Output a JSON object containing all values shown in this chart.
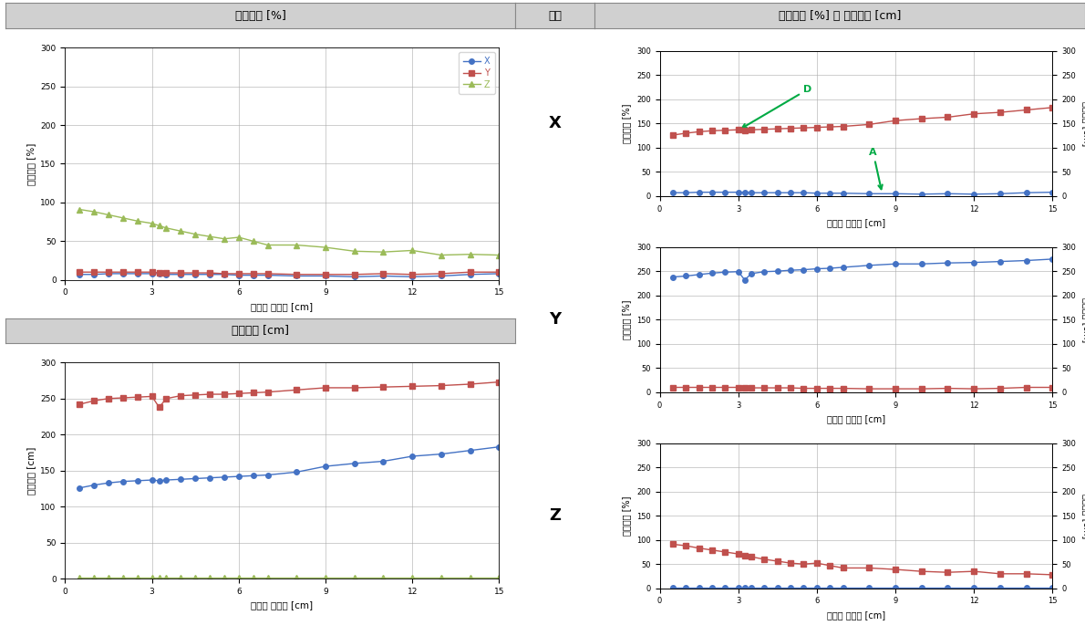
{
  "x_vals": [
    0.5,
    1.0,
    1.5,
    2.0,
    2.5,
    3.0,
    3.25,
    3.5,
    4.0,
    4.5,
    5.0,
    5.5,
    6.0,
    6.5,
    7.0,
    8.0,
    9.0,
    10.0,
    11.0,
    12.0,
    13.0,
    14.0,
    15.0
  ],
  "acc_X": [
    7,
    7,
    8,
    8,
    8,
    8,
    8,
    7,
    7,
    7,
    7,
    7,
    6,
    6,
    6,
    5,
    5,
    4,
    5,
    4,
    5,
    7,
    8
  ],
  "acc_Y": [
    10,
    10,
    10,
    10,
    10,
    10,
    9,
    9,
    9,
    9,
    9,
    8,
    8,
    8,
    8,
    7,
    7,
    7,
    8,
    7,
    8,
    10,
    10
  ],
  "acc_Z": [
    91,
    88,
    84,
    80,
    76,
    73,
    70,
    67,
    63,
    59,
    56,
    53,
    55,
    50,
    45,
    45,
    42,
    37,
    36,
    38,
    32,
    33,
    32
  ],
  "disp_X": [
    126,
    130,
    133,
    135,
    136,
    137,
    136,
    137,
    138,
    139,
    140,
    141,
    142,
    143,
    144,
    148,
    156,
    160,
    163,
    170,
    173,
    178,
    183
  ],
  "disp_Y": [
    242,
    247,
    250,
    251,
    252,
    253,
    238,
    250,
    254,
    255,
    256,
    256,
    257,
    258,
    259,
    262,
    265,
    265,
    266,
    267,
    268,
    270,
    273
  ],
  "disp_Z": [
    2,
    2,
    2,
    2,
    2,
    2,
    2,
    2,
    2,
    2,
    2,
    2,
    2,
    2,
    2,
    2,
    2,
    2,
    2,
    2,
    2,
    2,
    2
  ],
  "right_X_acc": [
    7,
    7,
    8,
    8,
    8,
    8,
    8,
    7,
    7,
    7,
    7,
    7,
    6,
    6,
    6,
    5,
    5,
    4,
    5,
    4,
    5,
    7,
    8
  ],
  "right_X_disp": [
    126,
    130,
    133,
    135,
    136,
    137,
    136,
    137,
    138,
    139,
    140,
    141,
    142,
    143,
    144,
    148,
    156,
    160,
    163,
    170,
    173,
    178,
    183
  ],
  "right_Y_acc": [
    238,
    240,
    243,
    246,
    248,
    249,
    232,
    245,
    249,
    250,
    252,
    253,
    255,
    256,
    258,
    262,
    265,
    265,
    267,
    268,
    270,
    272,
    275
  ],
  "right_Y_disp": [
    10,
    10,
    10,
    10,
    10,
    10,
    9,
    9,
    9,
    9,
    9,
    8,
    8,
    8,
    8,
    7,
    7,
    7,
    8,
    7,
    8,
    10,
    10
  ],
  "right_Z_acc": [
    2,
    2,
    2,
    2,
    2,
    2,
    2,
    2,
    2,
    2,
    2,
    2,
    2,
    2,
    2,
    2,
    2,
    2,
    2,
    2,
    2,
    2,
    2
  ],
  "right_Z_disp": [
    91,
    88,
    83,
    79,
    75,
    71,
    68,
    65,
    60,
    56,
    52,
    50,
    52,
    47,
    42,
    42,
    39,
    35,
    33,
    35,
    30,
    30,
    28
  ],
  "color_blue": "#4472C4",
  "color_red": "#C0504D",
  "color_green_olive": "#9BBB59",
  "color_green_arrow": "#00AA44",
  "bg_header": "#D0D0D0",
  "title_left_top": "가속도비 [%]",
  "title_left_bottom": "응답변위 [cm]",
  "title_right": "가속도비 [%] 및 응답변위 [cm]",
  "direction_label": "방향",
  "xlabel": "스프링 원처짔 [cm]",
  "ylabel_acc": "가속도비 [%]",
  "ylabel_disp": "응답변위 [cm]",
  "legend_X": "X",
  "legend_Y": "Y",
  "legend_Z": "Z",
  "xlim": [
    0,
    15
  ],
  "ylim": [
    0,
    300
  ],
  "xticks": [
    0,
    3,
    6,
    9,
    12,
    15
  ],
  "yticks": [
    0,
    50,
    100,
    150,
    200,
    250,
    300
  ]
}
